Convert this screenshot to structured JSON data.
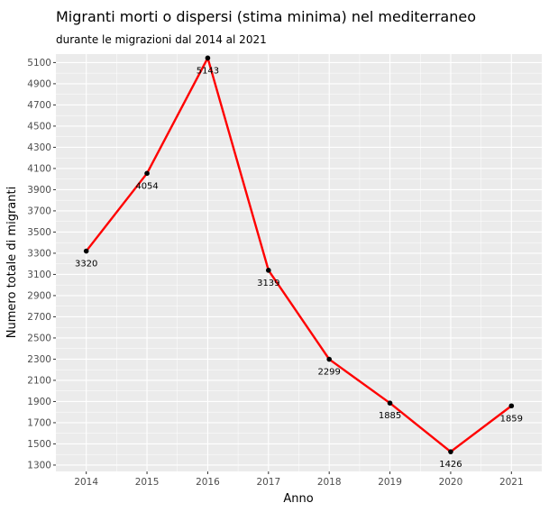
{
  "chart_data": {
    "type": "line",
    "title": "Migranti morti o dispersi (stima minima) nel mediterraneo",
    "subtitle": "durante le migrazioni dal 2014 al 2021",
    "xlabel": "Anno",
    "ylabel": "Numero totale di migranti",
    "x": [
      "2014",
      "2015",
      "2016",
      "2017",
      "2018",
      "2019",
      "2020",
      "2021"
    ],
    "y": [
      3320,
      4054,
      5143,
      3139,
      2299,
      1885,
      1426,
      1859
    ],
    "yticks": [
      1300,
      1500,
      1700,
      1900,
      2100,
      2300,
      2500,
      2700,
      2900,
      3100,
      3300,
      3500,
      3700,
      3900,
      4100,
      4300,
      4500,
      4700,
      4900,
      5100
    ],
    "ylim": [
      1240,
      5180
    ],
    "grid": true,
    "colors": {
      "line": "#ff0000",
      "point": "#000000",
      "panel": "#ebebeb",
      "grid": "#ffffff"
    }
  }
}
